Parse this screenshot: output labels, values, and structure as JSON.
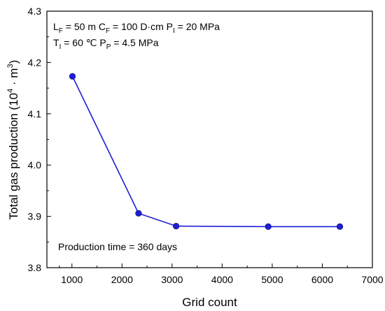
{
  "chart_data": {
    "type": "line",
    "xlabel": "Grid count",
    "ylabel_main": "Total gas production (10",
    "ylabel_sup": "4",
    "ylabel_mid": " · m",
    "ylabel_sup2": "3",
    "ylabel_end": ")",
    "xlim": [
      500,
      7000
    ],
    "ylim": [
      3.8,
      4.3
    ],
    "xticks": [
      1000,
      2000,
      3000,
      4000,
      5000,
      6000,
      7000
    ],
    "yticks": [
      3.8,
      3.9,
      4.0,
      4.1,
      4.2,
      4.3
    ],
    "xtick_labels": [
      "1000",
      "2000",
      "3000",
      "4000",
      "5000",
      "6000",
      "7000"
    ],
    "ytick_labels": [
      "3.8",
      "3.9",
      "4.0",
      "4.1",
      "4.2",
      "4.3"
    ],
    "grid": false,
    "series": [
      {
        "color": "#1f1fd6",
        "x": [
          1010,
          2330,
          3080,
          4920,
          6350
        ],
        "y": [
          4.173,
          3.906,
          3.881,
          3.88,
          3.88
        ]
      }
    ],
    "annotations": {
      "line1": [
        {
          "t": "L"
        },
        {
          "t": "F",
          "sub": true
        },
        {
          "t": " = 50 m   C"
        },
        {
          "t": "F",
          "sub": true
        },
        {
          "t": " = 100 D·cm   P"
        },
        {
          "t": "I",
          "sub": true
        },
        {
          "t": " = 20 MPa"
        }
      ],
      "line2": [
        {
          "t": "T"
        },
        {
          "t": "I",
          "sub": true
        },
        {
          "t": " = 60 ℃   P"
        },
        {
          "t": "P",
          "sub": true
        },
        {
          "t": " = 4.5 MPa"
        }
      ],
      "production_time": "Production time = 360 days"
    }
  }
}
